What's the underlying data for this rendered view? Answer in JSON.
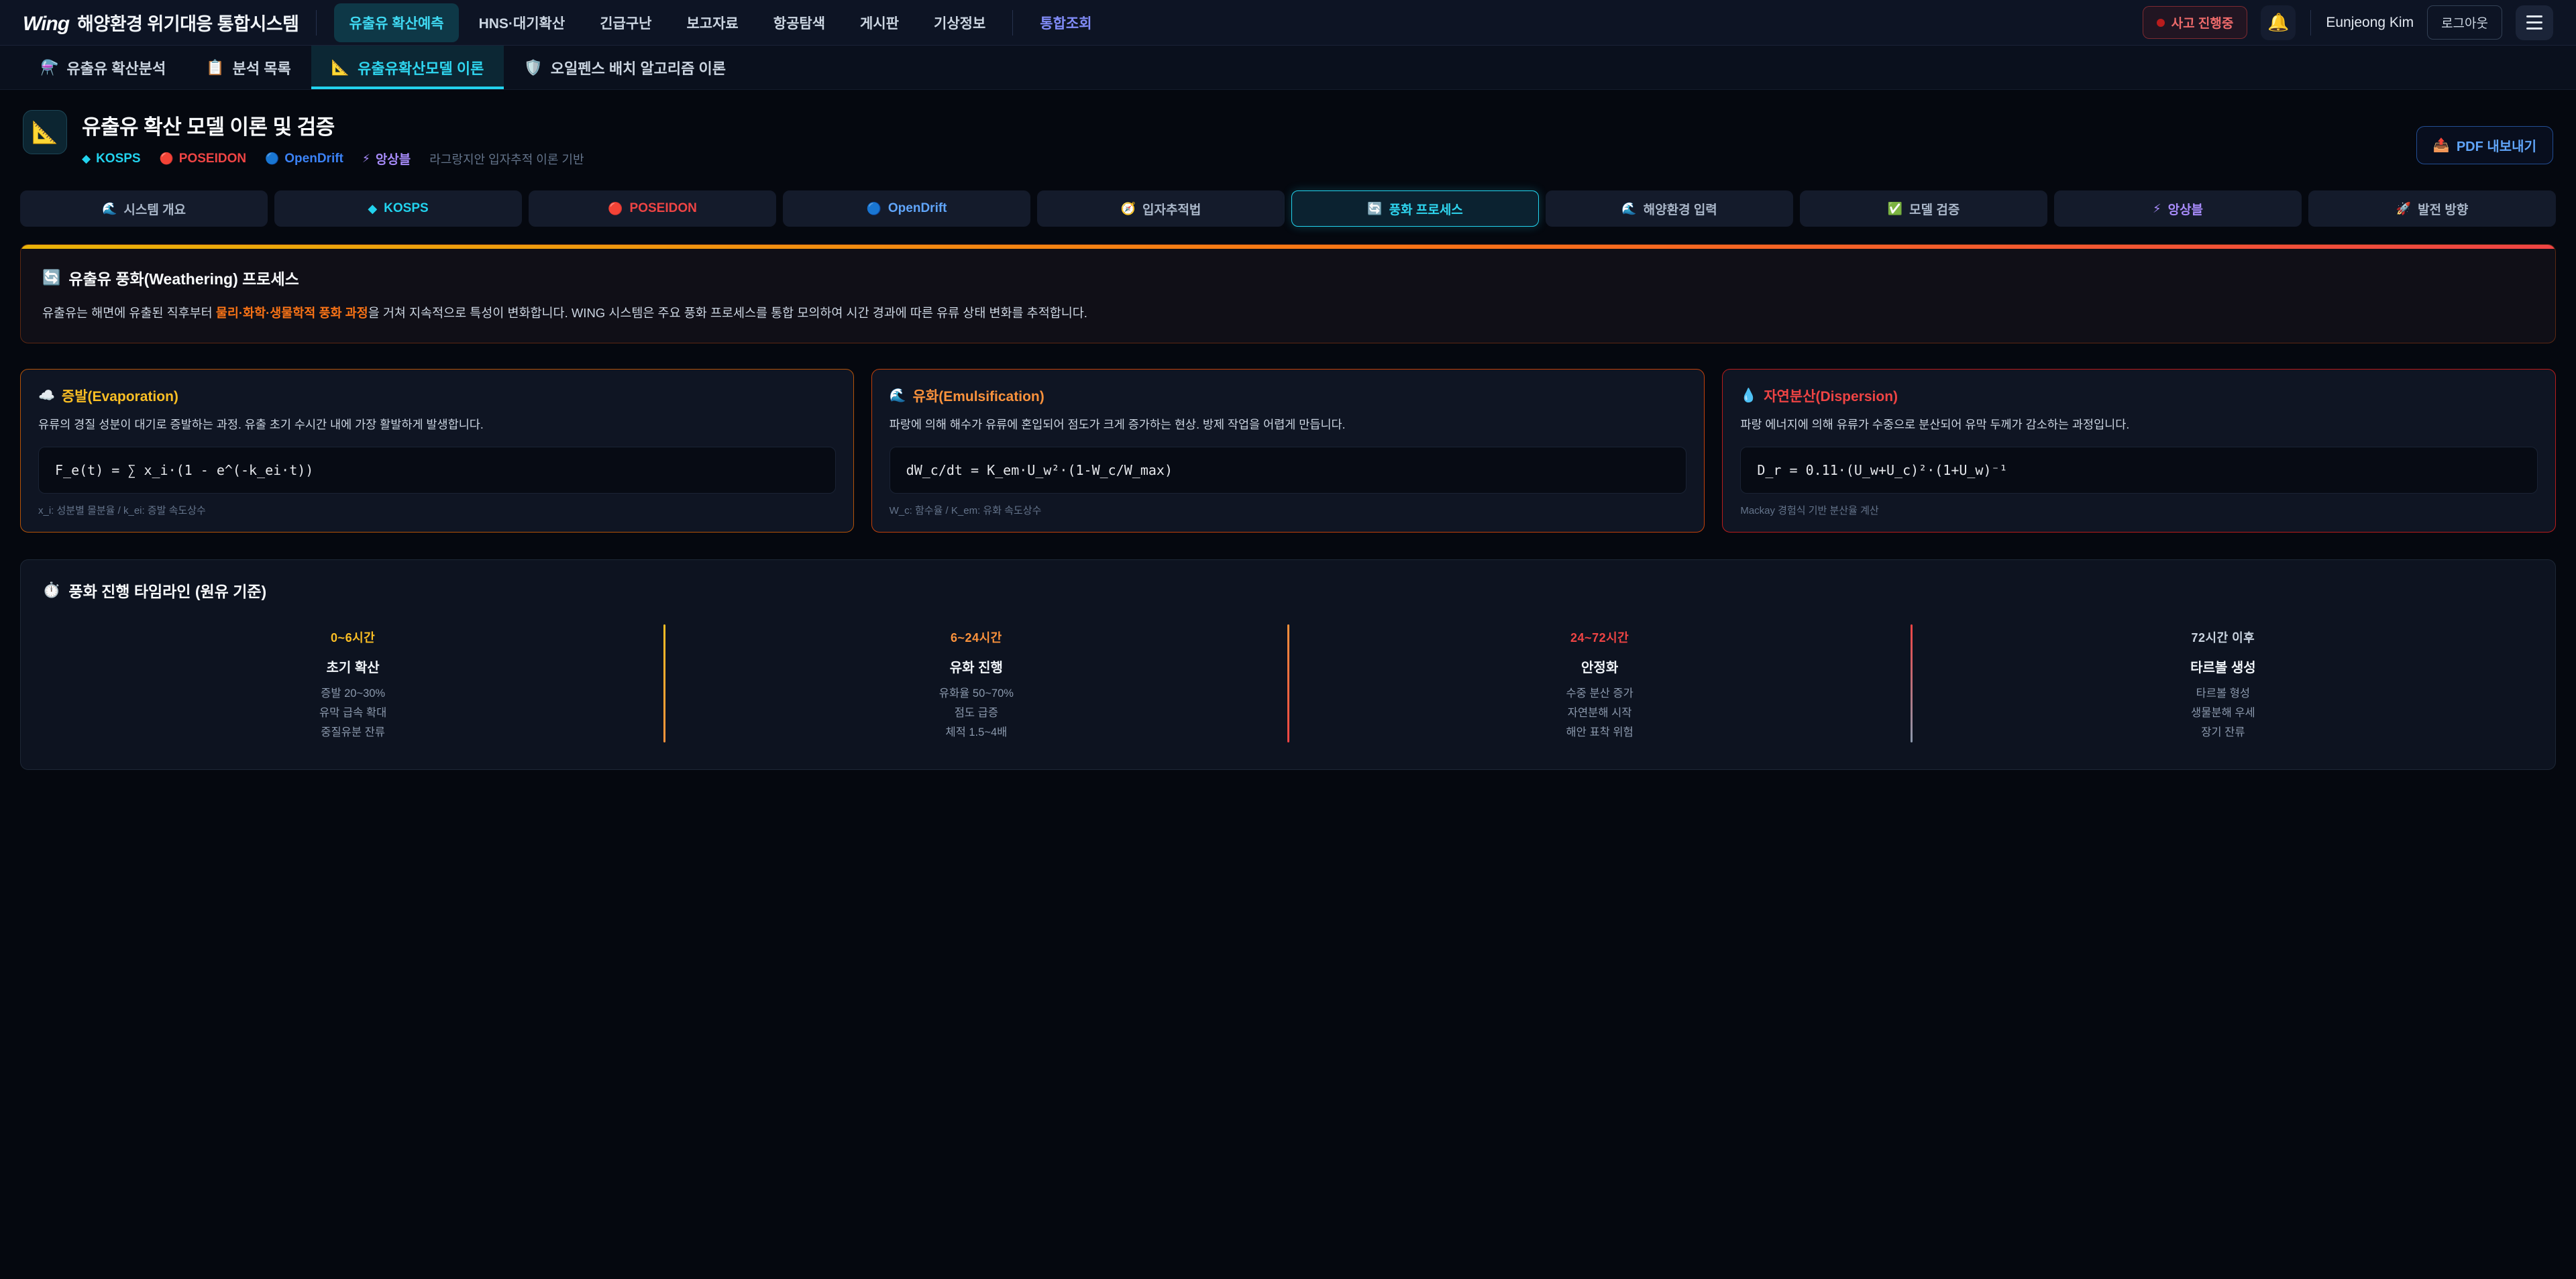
{
  "header": {
    "logo_wing": "Wing",
    "logo_title": "해양환경 위기대응 통합시스템",
    "nav": [
      {
        "label": "유출유 확산예측"
      },
      {
        "label": "HNS·대기확산"
      },
      {
        "label": "긴급구난"
      },
      {
        "label": "보고자료"
      },
      {
        "label": "항공탐색"
      },
      {
        "label": "게시판"
      },
      {
        "label": "기상정보"
      },
      {
        "label": "통합조회"
      }
    ],
    "incident_badge": "사고 진행중",
    "bell_icon": "🔔",
    "user_name": "Eunjeong Kim",
    "logout_label": "로그아웃",
    "accent_active": "#22d3ee",
    "accent_link": "#818cf8",
    "incident_color": "#ef4444"
  },
  "subtabs": [
    {
      "icon": "⚗️",
      "label": "유출유 확산분석"
    },
    {
      "icon": "📋",
      "label": "분석 목록"
    },
    {
      "icon": "📐",
      "label": "유출유확산모델 이론"
    },
    {
      "icon": "🛡️",
      "label": "오일펜스 배치 알고리즘 이론"
    }
  ],
  "page_header": {
    "icon": "📐",
    "title": "유출유 확산 모델 이론 및 검증",
    "badges": [
      {
        "icon": "◆",
        "label": "KOSPS",
        "color": "#22d3ee"
      },
      {
        "icon": "🔴",
        "label": "POSEIDON",
        "color": "#ef4444"
      },
      {
        "icon": "🔵",
        "label": "OpenDrift",
        "color": "#3b82f6"
      },
      {
        "icon": "⚡",
        "label": "앙상블",
        "color": "#a78bfa"
      }
    ],
    "subtitle": "라그랑지안 입자추적 이론 기반",
    "pdf_icon": "📤",
    "pdf_label": "PDF 내보내기"
  },
  "section_tabs": [
    {
      "icon": "🌊",
      "label": "시스템 개요"
    },
    {
      "icon": "◆",
      "label": "KOSPS",
      "color": "#22d3ee"
    },
    {
      "icon": "🔴",
      "label": "POSEIDON",
      "color": "#ef4444"
    },
    {
      "icon": "🔵",
      "label": "OpenDrift",
      "color": "#60a5fa"
    },
    {
      "icon": "🧭",
      "label": "입자추적법"
    },
    {
      "icon": "🔄",
      "label": "풍화 프로세스",
      "active": "true",
      "color": "#22d3ee"
    },
    {
      "icon": "🌊",
      "label": "해양환경 입력"
    },
    {
      "icon": "✅",
      "label": "모델 검증"
    },
    {
      "icon": "⚡",
      "label": "앙상블",
      "color": "#a78bfa"
    },
    {
      "icon": "🚀",
      "label": "발전 방향"
    }
  ],
  "weathering": {
    "icon": "🔄",
    "title": "유출유 풍화(Weathering) 프로세스",
    "desc_pre": "유출유는 해면에 유출된 직후부터 ",
    "desc_highlight": "물리·화학·생물학적 풍화 과정",
    "desc_post": "을 거쳐 지속적으로 특성이 변화합니다. WING 시스템은 주요 풍화 프로세스를 통합 모의하여 시간 경과에 따른 유류 상태 변화를 추적합니다.",
    "highlight_color": "#f97316",
    "bar_gradient": [
      "#eab308",
      "#f97316",
      "#ef4444"
    ]
  },
  "process_cards": [
    {
      "icon": "☁️",
      "title": "증발(Evaporation)",
      "desc": "유류의 경질 성분이 대기로 증발하는 과정. 유출 초기 수시간 내에 가장 활발하게 발생합니다.",
      "formula": "F_e(t) = ∑ x_i·(1 - e^(-k_ei·t))",
      "note": "x_i: 성분별 몰분율 / k_ei: 증발 속도상수",
      "accent": "#f59e0b"
    },
    {
      "icon": "🌊",
      "title": "유화(Emulsification)",
      "desc": "파랑에 의해 해수가 유류에 혼입되어 점도가 크게 증가하는 현상. 방제 작업을 어렵게 만듭니다.",
      "formula": "dW_c/dt = K_em·U_w²·(1-W_c/W_max)",
      "note": "W_c: 함수율 / K_em: 유화 속도상수",
      "accent": "#f97316"
    },
    {
      "icon": "💧",
      "title": "자연분산(Dispersion)",
      "desc": "파랑 에너지에 의해 유류가 수중으로 분산되어 유막 두께가 감소하는 과정입니다.",
      "formula": "D_r = 0.11·(U_w+U_c)²·(1+U_w)⁻¹",
      "note": "Mackay 경험식 기반 분산율 계산",
      "accent": "#ef4444"
    }
  ],
  "timeline": {
    "icon": "⏱️",
    "title": "풍화 진행 타임라인 (원유 기준)",
    "stages": [
      {
        "time": "0~6시간",
        "name": "초기 확산",
        "color": "#fbbf24",
        "details": [
          "증발 20~30%",
          "유막 급속 확대",
          "중질유분 잔류"
        ]
      },
      {
        "time": "6~24시간",
        "name": "유화 진행",
        "color": "#fb923c",
        "details": [
          "유화율 50~70%",
          "점도 급증",
          "체적 1.5~4배"
        ]
      },
      {
        "time": "24~72시간",
        "name": "안정화",
        "color": "#ef4444",
        "details": [
          "수중 분산 증가",
          "자연분해 시작",
          "해안 표착 위험"
        ]
      },
      {
        "time": "72시간 이후",
        "name": "타르볼 생성",
        "color": "#cbd5e1",
        "details": [
          "타르볼 형성",
          "생물분해 우세",
          "장기 잔류"
        ]
      }
    ]
  }
}
